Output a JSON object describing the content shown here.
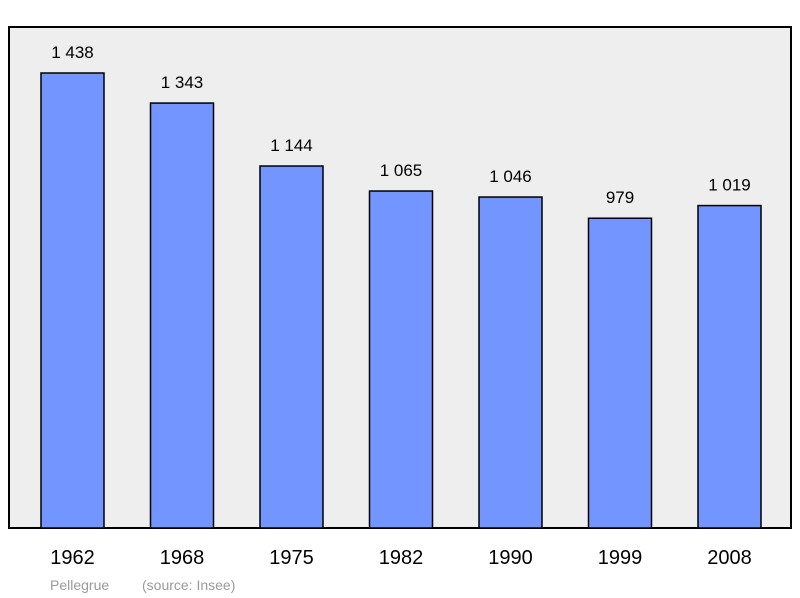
{
  "colors": {
    "bar_fill": "#7295ff",
    "plot_background": "#eeeeee",
    "frame": "#000000",
    "caption": "#9a9a9a"
  },
  "caption": {
    "place": "Pellegrue",
    "source": "(source: Insee)"
  },
  "chart_data": {
    "type": "bar",
    "categories": [
      "1962",
      "1968",
      "1975",
      "1982",
      "1990",
      "1999",
      "2008"
    ],
    "values": [
      1438,
      1343,
      1144,
      1065,
      1046,
      979,
      1019
    ],
    "value_labels": [
      "1 438",
      "1 343",
      "1 144",
      "1 065",
      "1 046",
      "979",
      "1 019"
    ],
    "title": "",
    "xlabel": "",
    "ylabel": "",
    "ylim": [
      0,
      1438
    ],
    "grid": false,
    "legend": "none"
  }
}
